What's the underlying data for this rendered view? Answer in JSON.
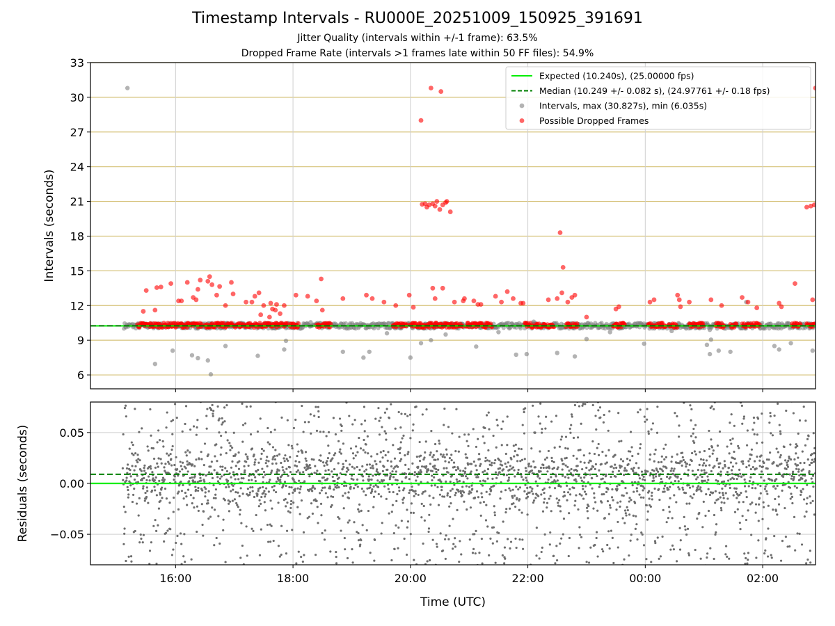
{
  "chart_data": [
    {
      "type": "scatter",
      "title": "Timestamp Intervals - RU000E_20251009_150925_391691",
      "subtitle_lines": [
        "Jitter Quality (intervals within +/-1 frame): 63.5%",
        "Dropped Frame Rate (intervals >1 frames late within 50 FF files): 54.9%"
      ],
      "xlabel": "",
      "ylabel": "Intervals (seconds)",
      "x_unit": "hours since 00:00 UTC of start day",
      "xlim": [
        14.55,
        26.9
      ],
      "ylim": [
        4.8,
        33
      ],
      "yticks": [
        6,
        9,
        12,
        15,
        18,
        21,
        24,
        27,
        30,
        33
      ],
      "ytick_labels": [
        "6",
        "9",
        "12",
        "15",
        "18",
        "21",
        "24",
        "27",
        "30",
        "33"
      ],
      "grid": {
        "horizontal": true,
        "horizontal_color": "#d6c27a",
        "vertical": true
      },
      "legend_position": "top-right",
      "series": [
        {
          "name": "Expected (10.240s), (25.00000 fps)",
          "kind": "hline",
          "value": 10.24,
          "color": "#00ee00",
          "style": "solid"
        },
        {
          "name": "Median (10.249 +/- 0.082 s), (24.97761 +/- 0.18 fps)",
          "kind": "hline",
          "value": 10.249,
          "color": "#007f00",
          "style": "dashed"
        },
        {
          "name": "Intervals, max (30.827s), min (6.035s)",
          "kind": "points",
          "color": "#808080",
          "points": [
            [
              15.18,
              30.8
            ],
            [
              15.65,
              6.95
            ],
            [
              15.95,
              8.1
            ],
            [
              16.28,
              7.7
            ],
            [
              16.38,
              7.45
            ],
            [
              16.55,
              7.25
            ],
            [
              16.6,
              6.05
            ],
            [
              16.85,
              8.5
            ],
            [
              17.4,
              7.65
            ],
            [
              17.85,
              8.2
            ],
            [
              17.88,
              8.95
            ],
            [
              18.85,
              8.0
            ],
            [
              19.2,
              7.5
            ],
            [
              19.3,
              8.0
            ],
            [
              20.0,
              7.5
            ],
            [
              20.18,
              8.75
            ],
            [
              20.35,
              9.0
            ],
            [
              21.12,
              8.45
            ],
            [
              21.8,
              7.75
            ],
            [
              21.98,
              7.8
            ],
            [
              22.5,
              7.9
            ],
            [
              22.8,
              7.6
            ],
            [
              23.0,
              9.1
            ],
            [
              23.98,
              8.7
            ],
            [
              25.05,
              8.6
            ],
            [
              25.1,
              7.8
            ],
            [
              25.12,
              9.05
            ],
            [
              25.25,
              8.1
            ],
            [
              25.45,
              8.0
            ],
            [
              25.72,
              12.3
            ],
            [
              25.1,
              9.9
            ],
            [
              26.2,
              8.5
            ],
            [
              26.28,
              8.2
            ],
            [
              26.85,
              8.1
            ],
            [
              26.48,
              8.75
            ],
            [
              22.1,
              10.6
            ],
            [
              18.3,
              10.55
            ],
            [
              19.6,
              9.6
            ],
            [
              20.6,
              9.5
            ],
            [
              23.4,
              9.7
            ],
            [
              24.45,
              9.8
            ],
            [
              21.5,
              9.7
            ]
          ]
        },
        {
          "name": "Possible Dropped Frames",
          "kind": "points",
          "color": "#ff0000",
          "points": [
            [
              15.45,
              11.5
            ],
            [
              15.5,
              13.3
            ],
            [
              15.65,
              11.6
            ],
            [
              15.68,
              13.55
            ],
            [
              15.75,
              13.6
            ],
            [
              15.92,
              13.9
            ],
            [
              16.05,
              12.4
            ],
            [
              16.1,
              12.4
            ],
            [
              16.2,
              14.0
            ],
            [
              16.3,
              12.7
            ],
            [
              16.35,
              12.5
            ],
            [
              16.38,
              13.4
            ],
            [
              16.42,
              14.2
            ],
            [
              16.55,
              14.1
            ],
            [
              16.58,
              14.5
            ],
            [
              16.62,
              13.8
            ],
            [
              16.7,
              12.9
            ],
            [
              16.75,
              13.65
            ],
            [
              16.85,
              12.0
            ],
            [
              16.95,
              14.0
            ],
            [
              16.98,
              13.0
            ],
            [
              17.2,
              12.3
            ],
            [
              17.3,
              12.3
            ],
            [
              17.35,
              12.8
            ],
            [
              17.42,
              13.1
            ],
            [
              17.45,
              11.2
            ],
            [
              17.5,
              12.0
            ],
            [
              17.6,
              11.0
            ],
            [
              17.62,
              12.2
            ],
            [
              17.65,
              11.7
            ],
            [
              17.7,
              11.6
            ],
            [
              17.72,
              12.1
            ],
            [
              17.78,
              11.3
            ],
            [
              17.85,
              12.0
            ],
            [
              18.05,
              12.9
            ],
            [
              18.25,
              12.8
            ],
            [
              18.4,
              12.4
            ],
            [
              18.48,
              14.3
            ],
            [
              18.5,
              11.6
            ],
            [
              18.85,
              12.6
            ],
            [
              19.25,
              12.9
            ],
            [
              19.35,
              12.6
            ],
            [
              19.55,
              12.3
            ],
            [
              19.75,
              12.0
            ],
            [
              19.98,
              12.9
            ],
            [
              20.05,
              11.85
            ],
            [
              20.18,
              28.0
            ],
            [
              20.2,
              20.75
            ],
            [
              20.25,
              20.8
            ],
            [
              20.28,
              20.5
            ],
            [
              20.32,
              20.7
            ],
            [
              20.35,
              30.8
            ],
            [
              20.38,
              20.8
            ],
            [
              20.42,
              20.6
            ],
            [
              20.45,
              21.0
            ],
            [
              20.5,
              20.3
            ],
            [
              20.52,
              30.5
            ],
            [
              20.55,
              20.7
            ],
            [
              20.6,
              20.9
            ],
            [
              20.62,
              21.0
            ],
            [
              20.68,
              20.1
            ],
            [
              20.38,
              13.5
            ],
            [
              20.42,
              12.6
            ],
            [
              20.55,
              13.5
            ],
            [
              20.75,
              12.3
            ],
            [
              20.9,
              12.4
            ],
            [
              20.92,
              12.6
            ],
            [
              21.08,
              12.4
            ],
            [
              21.15,
              12.1
            ],
            [
              21.2,
              12.1
            ],
            [
              21.45,
              12.8
            ],
            [
              21.55,
              12.3
            ],
            [
              21.65,
              13.2
            ],
            [
              21.75,
              12.6
            ],
            [
              21.88,
              12.2
            ],
            [
              21.92,
              12.2
            ],
            [
              22.35,
              12.5
            ],
            [
              22.5,
              12.6
            ],
            [
              22.55,
              18.3
            ],
            [
              22.58,
              13.1
            ],
            [
              22.6,
              15.3
            ],
            [
              22.68,
              12.3
            ],
            [
              22.75,
              12.7
            ],
            [
              22.8,
              12.9
            ],
            [
              23.0,
              11.0
            ],
            [
              23.5,
              11.7
            ],
            [
              23.55,
              11.9
            ],
            [
              24.08,
              12.3
            ],
            [
              24.15,
              12.5
            ],
            [
              24.55,
              12.9
            ],
            [
              24.58,
              12.5
            ],
            [
              24.6,
              11.9
            ],
            [
              24.75,
              12.3
            ],
            [
              25.12,
              12.5
            ],
            [
              25.3,
              12.0
            ],
            [
              25.65,
              12.7
            ],
            [
              25.75,
              12.3
            ],
            [
              25.9,
              11.8
            ],
            [
              26.28,
              12.2
            ],
            [
              26.32,
              11.9
            ],
            [
              26.55,
              13.9
            ],
            [
              26.75,
              20.5
            ],
            [
              26.82,
              20.6
            ],
            [
              26.85,
              12.5
            ],
            [
              26.88,
              20.7
            ],
            [
              26.9,
              30.8
            ]
          ]
        }
      ]
    },
    {
      "type": "scatter",
      "title": "",
      "xlabel": "Time (UTC)",
      "ylabel": "Residuals (seconds)",
      "xlim": [
        14.55,
        26.9
      ],
      "ylim": [
        -0.08,
        0.08
      ],
      "xticks": [
        16,
        18,
        20,
        22,
        24,
        26
      ],
      "xtick_labels": [
        "16:00",
        "18:00",
        "20:00",
        "22:00",
        "00:00",
        "02:00"
      ],
      "yticks": [
        -0.05,
        0.0,
        0.05
      ],
      "ytick_labels": [
        "−0.05",
        "0.00",
        "0.05"
      ],
      "grid": {
        "horizontal": true,
        "vertical": true
      },
      "series": [
        {
          "name": "",
          "kind": "hline",
          "value": 0.0,
          "color": "#00ee00",
          "style": "solid"
        },
        {
          "name": "",
          "kind": "hline",
          "value": 0.009,
          "color": "#007f00",
          "style": "dashed"
        },
        {
          "name": "",
          "kind": "points",
          "color": "#6e6e6e",
          "description_range": [
            15.1,
            26.9
          ]
        }
      ]
    }
  ]
}
